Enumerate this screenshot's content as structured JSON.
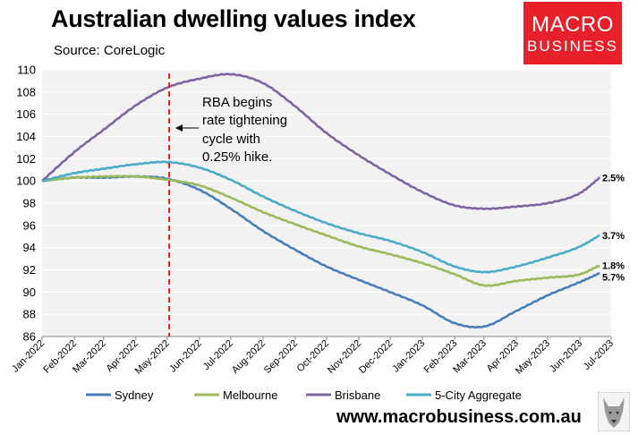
{
  "title": "Australian dwelling values index",
  "subtitle": "Source: CoreLogic",
  "logo": {
    "line1": "MACRO",
    "line2": "BUSINESS",
    "bg_color": "#e8202a"
  },
  "website": "www.macrobusiness.com.au",
  "annotation": {
    "lines": [
      "RBA begins",
      "rate tightening",
      "cycle with",
      "0.25% hike."
    ],
    "date": "2022-05-03"
  },
  "chart_data": {
    "type": "line",
    "ylim": [
      86,
      110
    ],
    "yticks": [
      86,
      88,
      90,
      92,
      94,
      96,
      98,
      100,
      102,
      104,
      106,
      108,
      110
    ],
    "xlim": [
      "2022-01-01",
      "2023-07-01"
    ],
    "xticks": [
      "Jan-2022",
      "Feb-2022",
      "Mar-2022",
      "Apr-2022",
      "May-2022",
      "Jun-2022",
      "Jul-2022",
      "Aug-2022",
      "Sep-2022",
      "Oct-2022",
      "Nov-2022",
      "Dec-2022",
      "Jan-2023",
      "Feb-2023",
      "Mar-2023",
      "Apr-2023",
      "May-2023",
      "Jun-2023",
      "Jul-2023"
    ],
    "grid": "horizontal",
    "legend_position": "bottom",
    "x": [
      "2022-01-01",
      "2022-02-01",
      "2022-03-01",
      "2022-04-01",
      "2022-05-01",
      "2022-06-01",
      "2022-07-01",
      "2022-08-01",
      "2022-09-01",
      "2022-10-01",
      "2022-11-01",
      "2022-12-01",
      "2023-01-01",
      "2023-02-01",
      "2023-03-01",
      "2023-04-01",
      "2023-05-01",
      "2023-06-01",
      "2023-06-20"
    ],
    "series": [
      {
        "name": "Sydney",
        "color": "#4a7ebb",
        "end_label": "5.7%",
        "values": [
          100.0,
          100.3,
          100.3,
          100.4,
          100.2,
          99.2,
          97.5,
          95.5,
          93.8,
          92.3,
          91.1,
          90.0,
          88.8,
          87.2,
          86.9,
          88.3,
          89.7,
          90.9,
          91.7
        ]
      },
      {
        "name": "Melbourne",
        "color": "#9bbb59",
        "end_label": "1.8%",
        "values": [
          100.0,
          100.3,
          100.4,
          100.4,
          100.1,
          99.6,
          98.5,
          97.2,
          96.1,
          95.1,
          94.1,
          93.4,
          92.6,
          91.6,
          90.6,
          91.0,
          91.3,
          91.6,
          92.4
        ]
      },
      {
        "name": "Brisbane",
        "color": "#8064a2",
        "end_label": "2.5%",
        "values": [
          100.0,
          102.6,
          104.6,
          106.8,
          108.4,
          109.2,
          109.6,
          108.8,
          106.7,
          104.3,
          102.3,
          100.6,
          99.0,
          97.8,
          97.5,
          97.7,
          98.0,
          98.9,
          100.3
        ]
      },
      {
        "name": "5-City Aggregate",
        "color": "#4bacc6",
        "end_label": "3.7%",
        "values": [
          100.0,
          100.7,
          101.1,
          101.5,
          101.7,
          101.2,
          100.1,
          98.6,
          97.3,
          96.2,
          95.3,
          94.6,
          93.6,
          92.3,
          91.8,
          92.3,
          93.1,
          94.1,
          95.1
        ]
      }
    ]
  }
}
